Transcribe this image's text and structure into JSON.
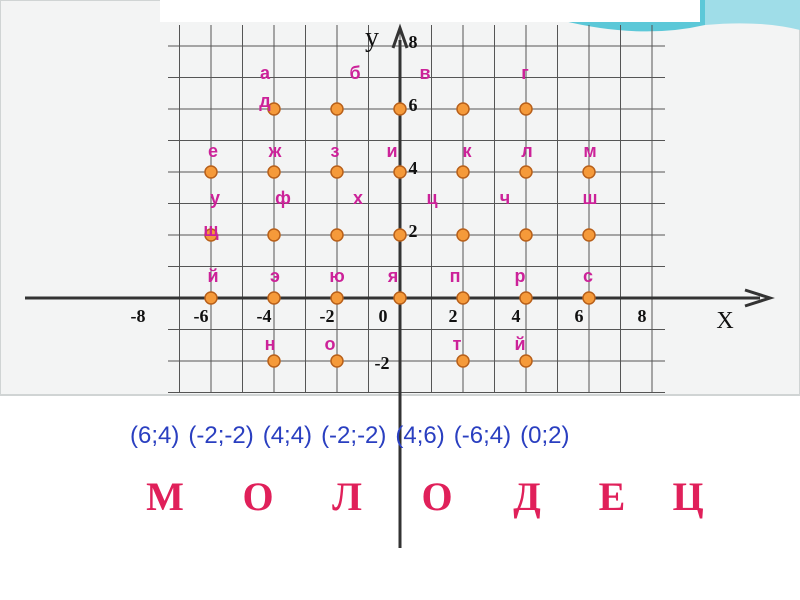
{
  "axes": {
    "x_label": "X",
    "y_label": "у",
    "origin_label": "0",
    "xticks": [
      -8,
      -6,
      -4,
      -2,
      2,
      4,
      6,
      8
    ],
    "yticks": [
      -2,
      2,
      4,
      6,
      8
    ]
  },
  "points": [
    {
      "x": -4,
      "y": 6
    },
    {
      "x": -2,
      "y": 6
    },
    {
      "x": 0,
      "y": 6
    },
    {
      "x": 2,
      "y": 6
    },
    {
      "x": 4,
      "y": 6
    },
    {
      "x": -6,
      "y": 4
    },
    {
      "x": -4,
      "y": 4
    },
    {
      "x": -2,
      "y": 4
    },
    {
      "x": 0,
      "y": 4
    },
    {
      "x": 2,
      "y": 4
    },
    {
      "x": 4,
      "y": 4
    },
    {
      "x": 6,
      "y": 4
    },
    {
      "x": -6,
      "y": 2
    },
    {
      "x": -4,
      "y": 2
    },
    {
      "x": -2,
      "y": 2
    },
    {
      "x": 0,
      "y": 2
    },
    {
      "x": 2,
      "y": 2
    },
    {
      "x": 4,
      "y": 2
    },
    {
      "x": 6,
      "y": 2
    },
    {
      "x": -6,
      "y": 0
    },
    {
      "x": -4,
      "y": 0
    },
    {
      "x": -2,
      "y": 0
    },
    {
      "x": 0,
      "y": 0
    },
    {
      "x": 2,
      "y": 0
    },
    {
      "x": 4,
      "y": 0
    },
    {
      "x": 6,
      "y": 0
    },
    {
      "x": -4,
      "y": -2
    },
    {
      "x": -2,
      "y": -2
    },
    {
      "x": 2,
      "y": -2
    },
    {
      "x": 4,
      "y": -2
    }
  ],
  "letters": [
    "а",
    "б",
    "в",
    "г",
    "д",
    "е",
    "ж",
    "з",
    "и",
    "к",
    "л",
    "м",
    "у",
    "ф",
    "х",
    "ц",
    "ч",
    "ш",
    "щ",
    "й",
    "э",
    "ю",
    "я",
    "п",
    "р",
    "с",
    "н",
    "о",
    "т",
    "й"
  ],
  "coordinates": [
    "(6;4)",
    "(-2;-2)",
    "(4;4)",
    "(-2;-2)",
    "(4;6)",
    "(-6;4)",
    "(0;2)"
  ],
  "answer": [
    "М",
    "О",
    "Л",
    "О",
    "Д",
    "Е",
    "Ц"
  ]
}
